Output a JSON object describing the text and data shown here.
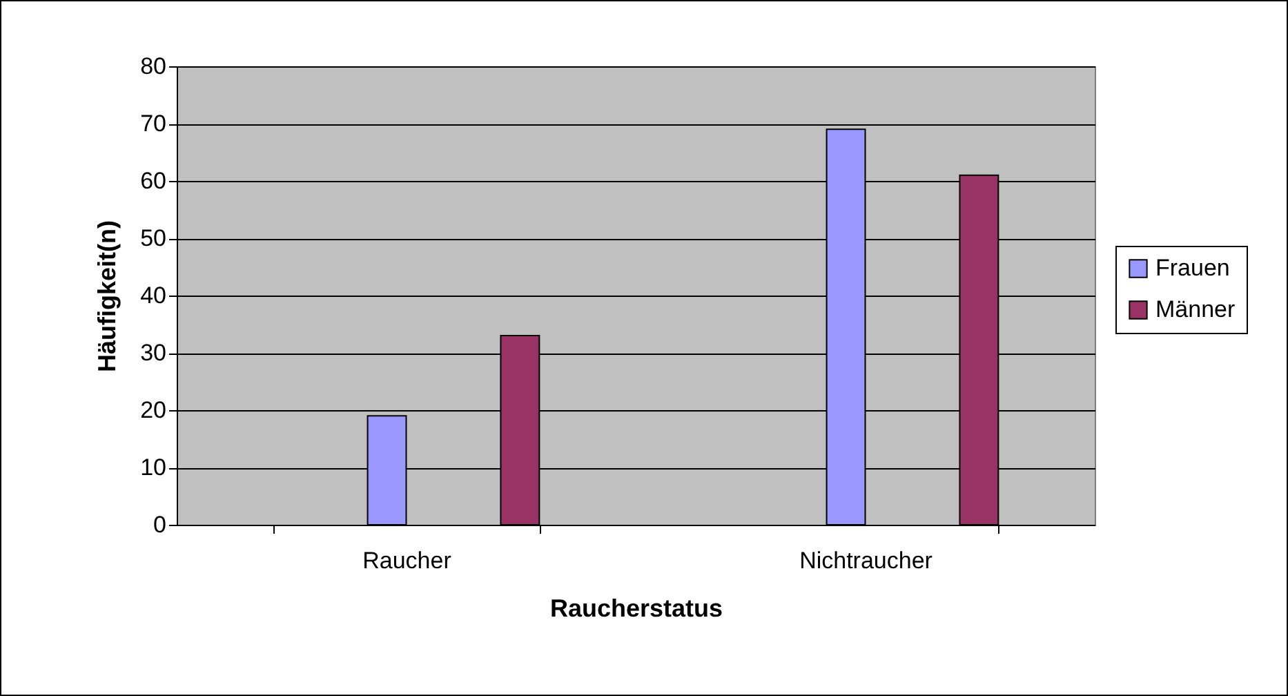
{
  "chart_data": {
    "type": "bar",
    "xlabel": "Raucherstatus",
    "ylabel": "Häufigkeit(n)",
    "categories": [
      "Raucher",
      "Nichtraucher"
    ],
    "series": [
      {
        "name": "Frauen",
        "color": "#9999ff",
        "values": [
          19,
          69
        ]
      },
      {
        "name": "Männer",
        "color": "#993366",
        "values": [
          33,
          61
        ]
      }
    ],
    "ylim": [
      0,
      80
    ],
    "yticks": [
      0,
      10,
      20,
      30,
      40,
      50,
      60,
      70,
      80
    ],
    "grid": "y",
    "legend": "right"
  }
}
